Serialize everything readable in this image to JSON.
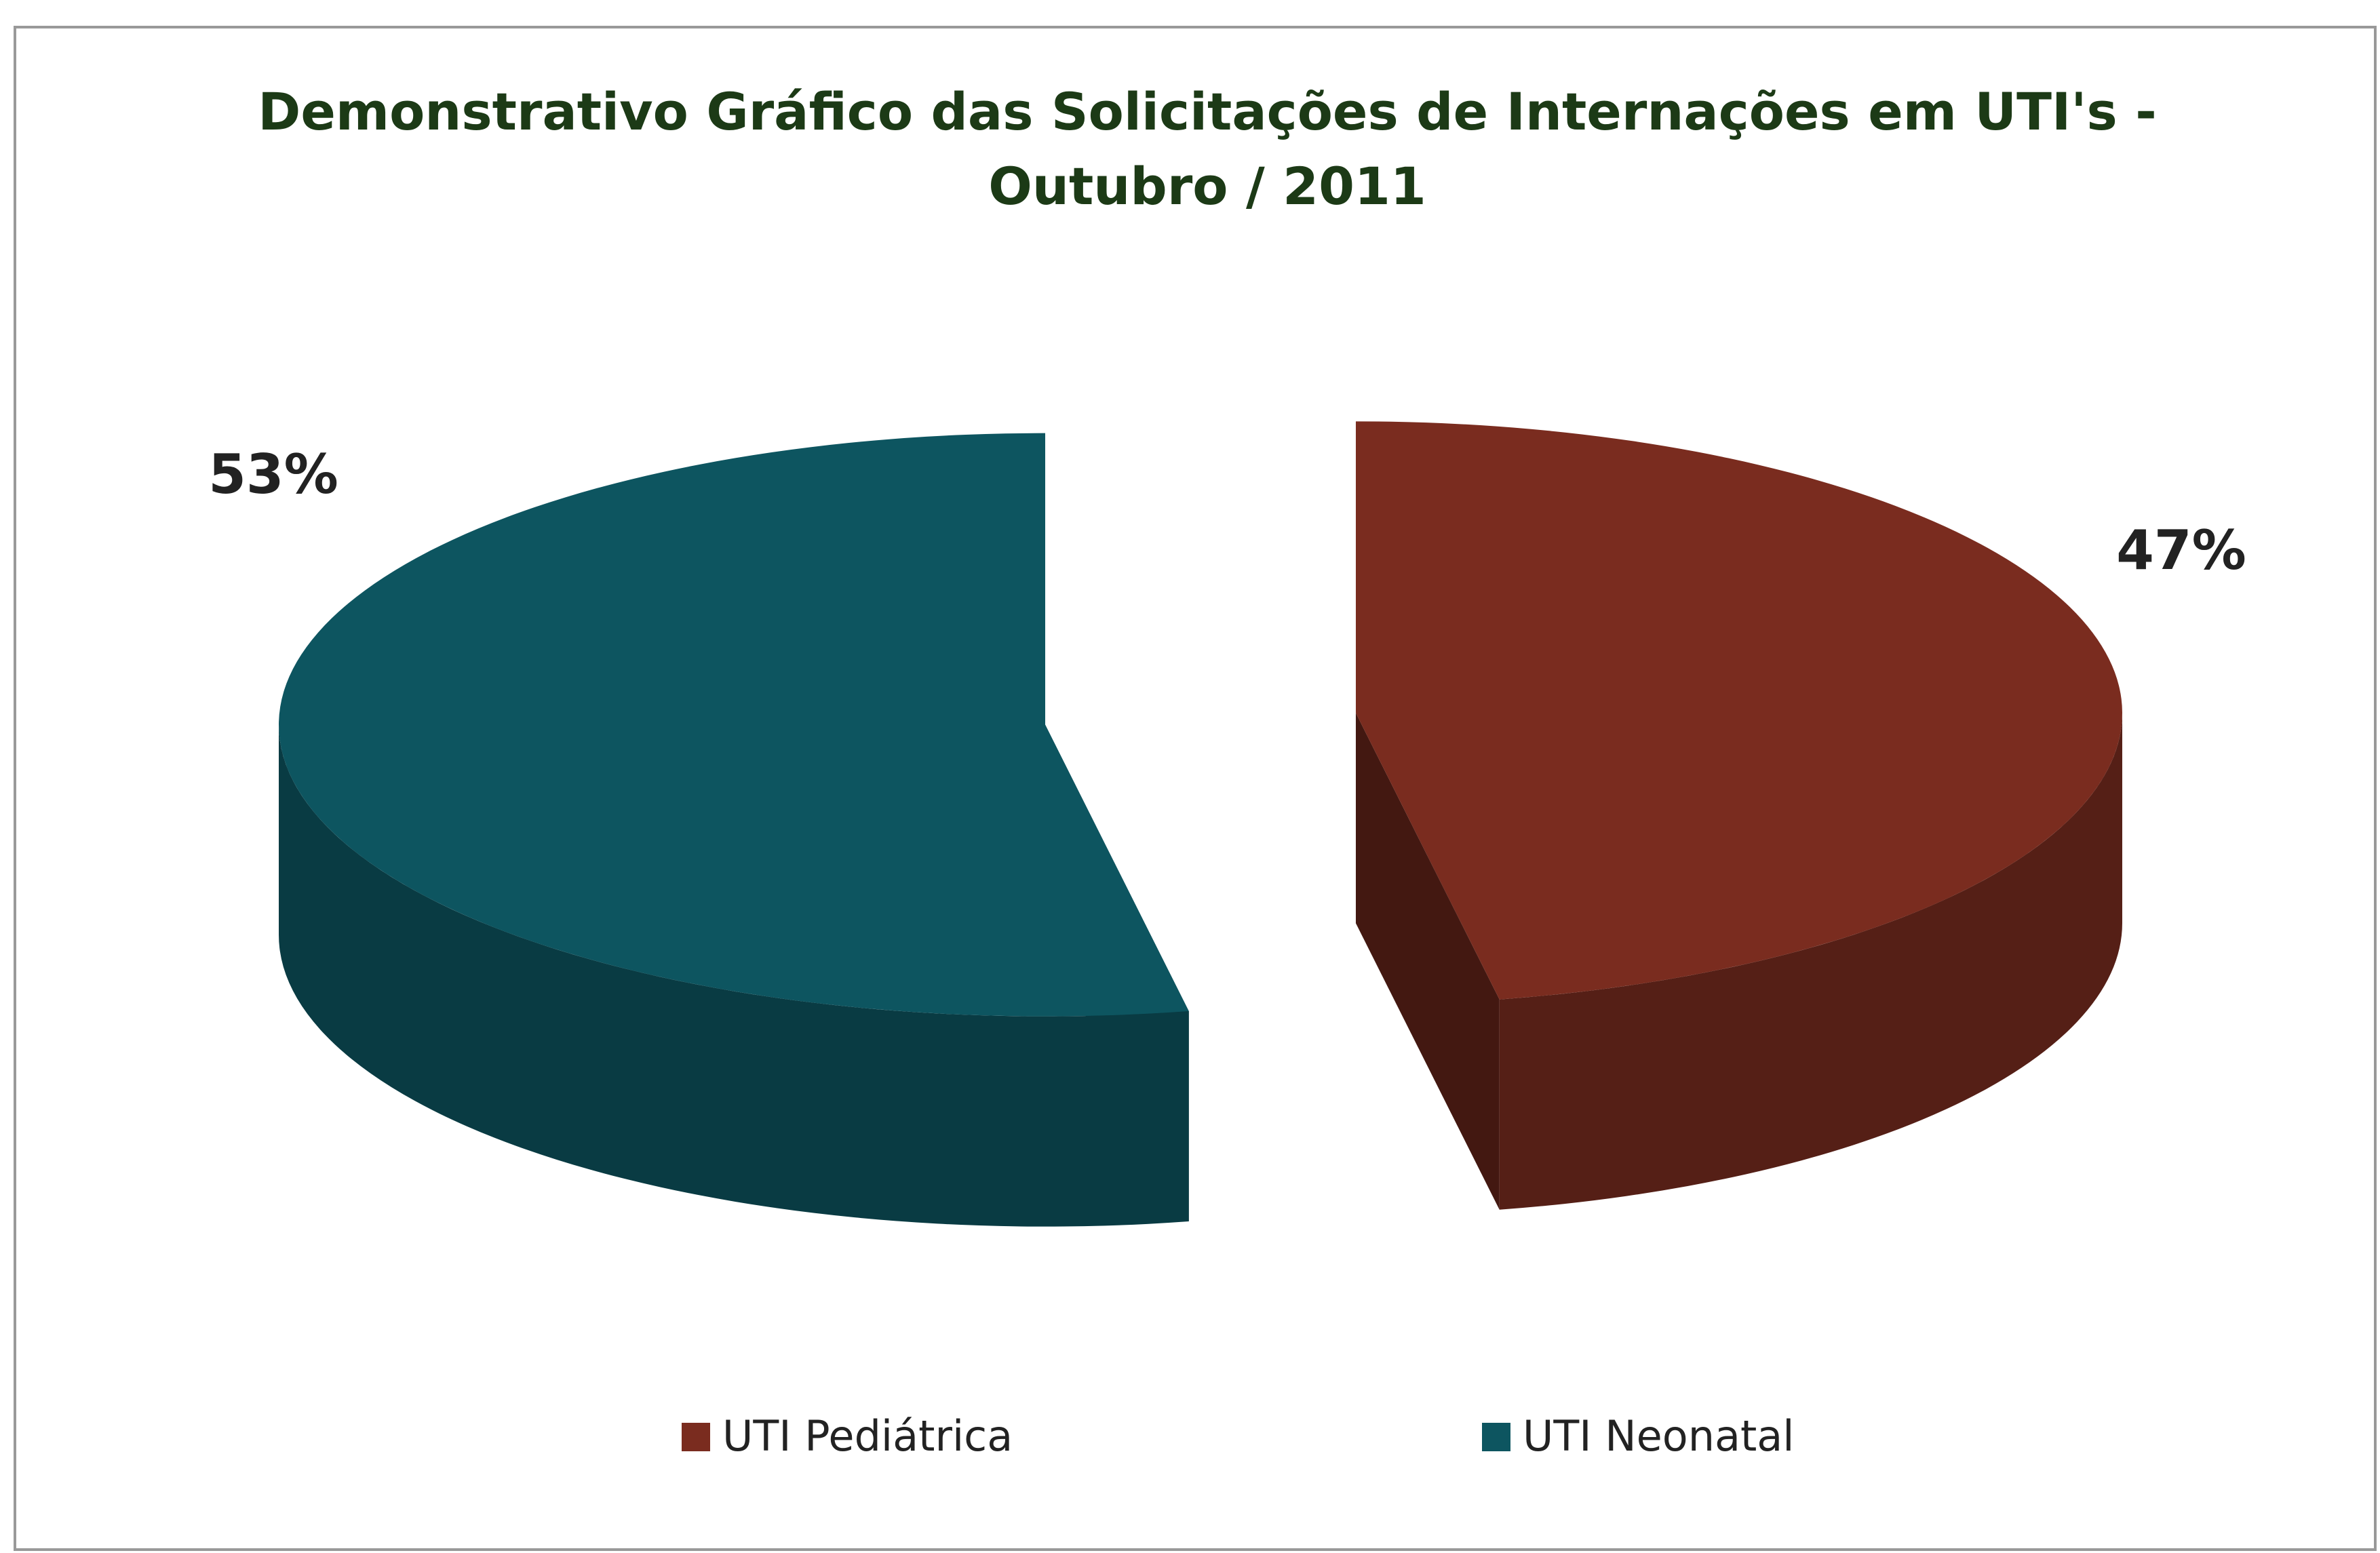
{
  "chart_data": {
    "type": "pie",
    "title": "Demonstrativo Gráfico das Solicitações de Internações em UTI's - Outubro / 2011",
    "categories": [
      "UTI Pediátrica",
      "UTI Neonatal"
    ],
    "values": [
      47,
      53
    ],
    "value_labels": [
      "47%",
      "53%"
    ],
    "colors": [
      "#7a2c1f",
      "#0d5560"
    ],
    "legend": "bottom",
    "three_d": true,
    "exploded": true
  }
}
